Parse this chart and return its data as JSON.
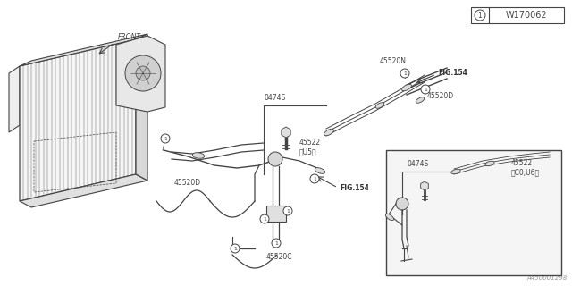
{
  "bg_color": "#ffffff",
  "lc": "#444444",
  "lc_light": "#888888",
  "title_ref": "W170062",
  "part_number_ref": "A450001298",
  "labels": {
    "front": "FRONT",
    "45520N": "45520N",
    "45520D_top": "45520D",
    "45520D_left": "45520D",
    "45520C": "45520C",
    "45522_US": "45522\n〈U5〉",
    "45522_CO": "45522\n〈C0,U6〉",
    "0474S_main": "0474S",
    "0474S_inset": "0474S",
    "FIG154_top": "FIG.154",
    "FIG154_bot": "FIG.154"
  }
}
